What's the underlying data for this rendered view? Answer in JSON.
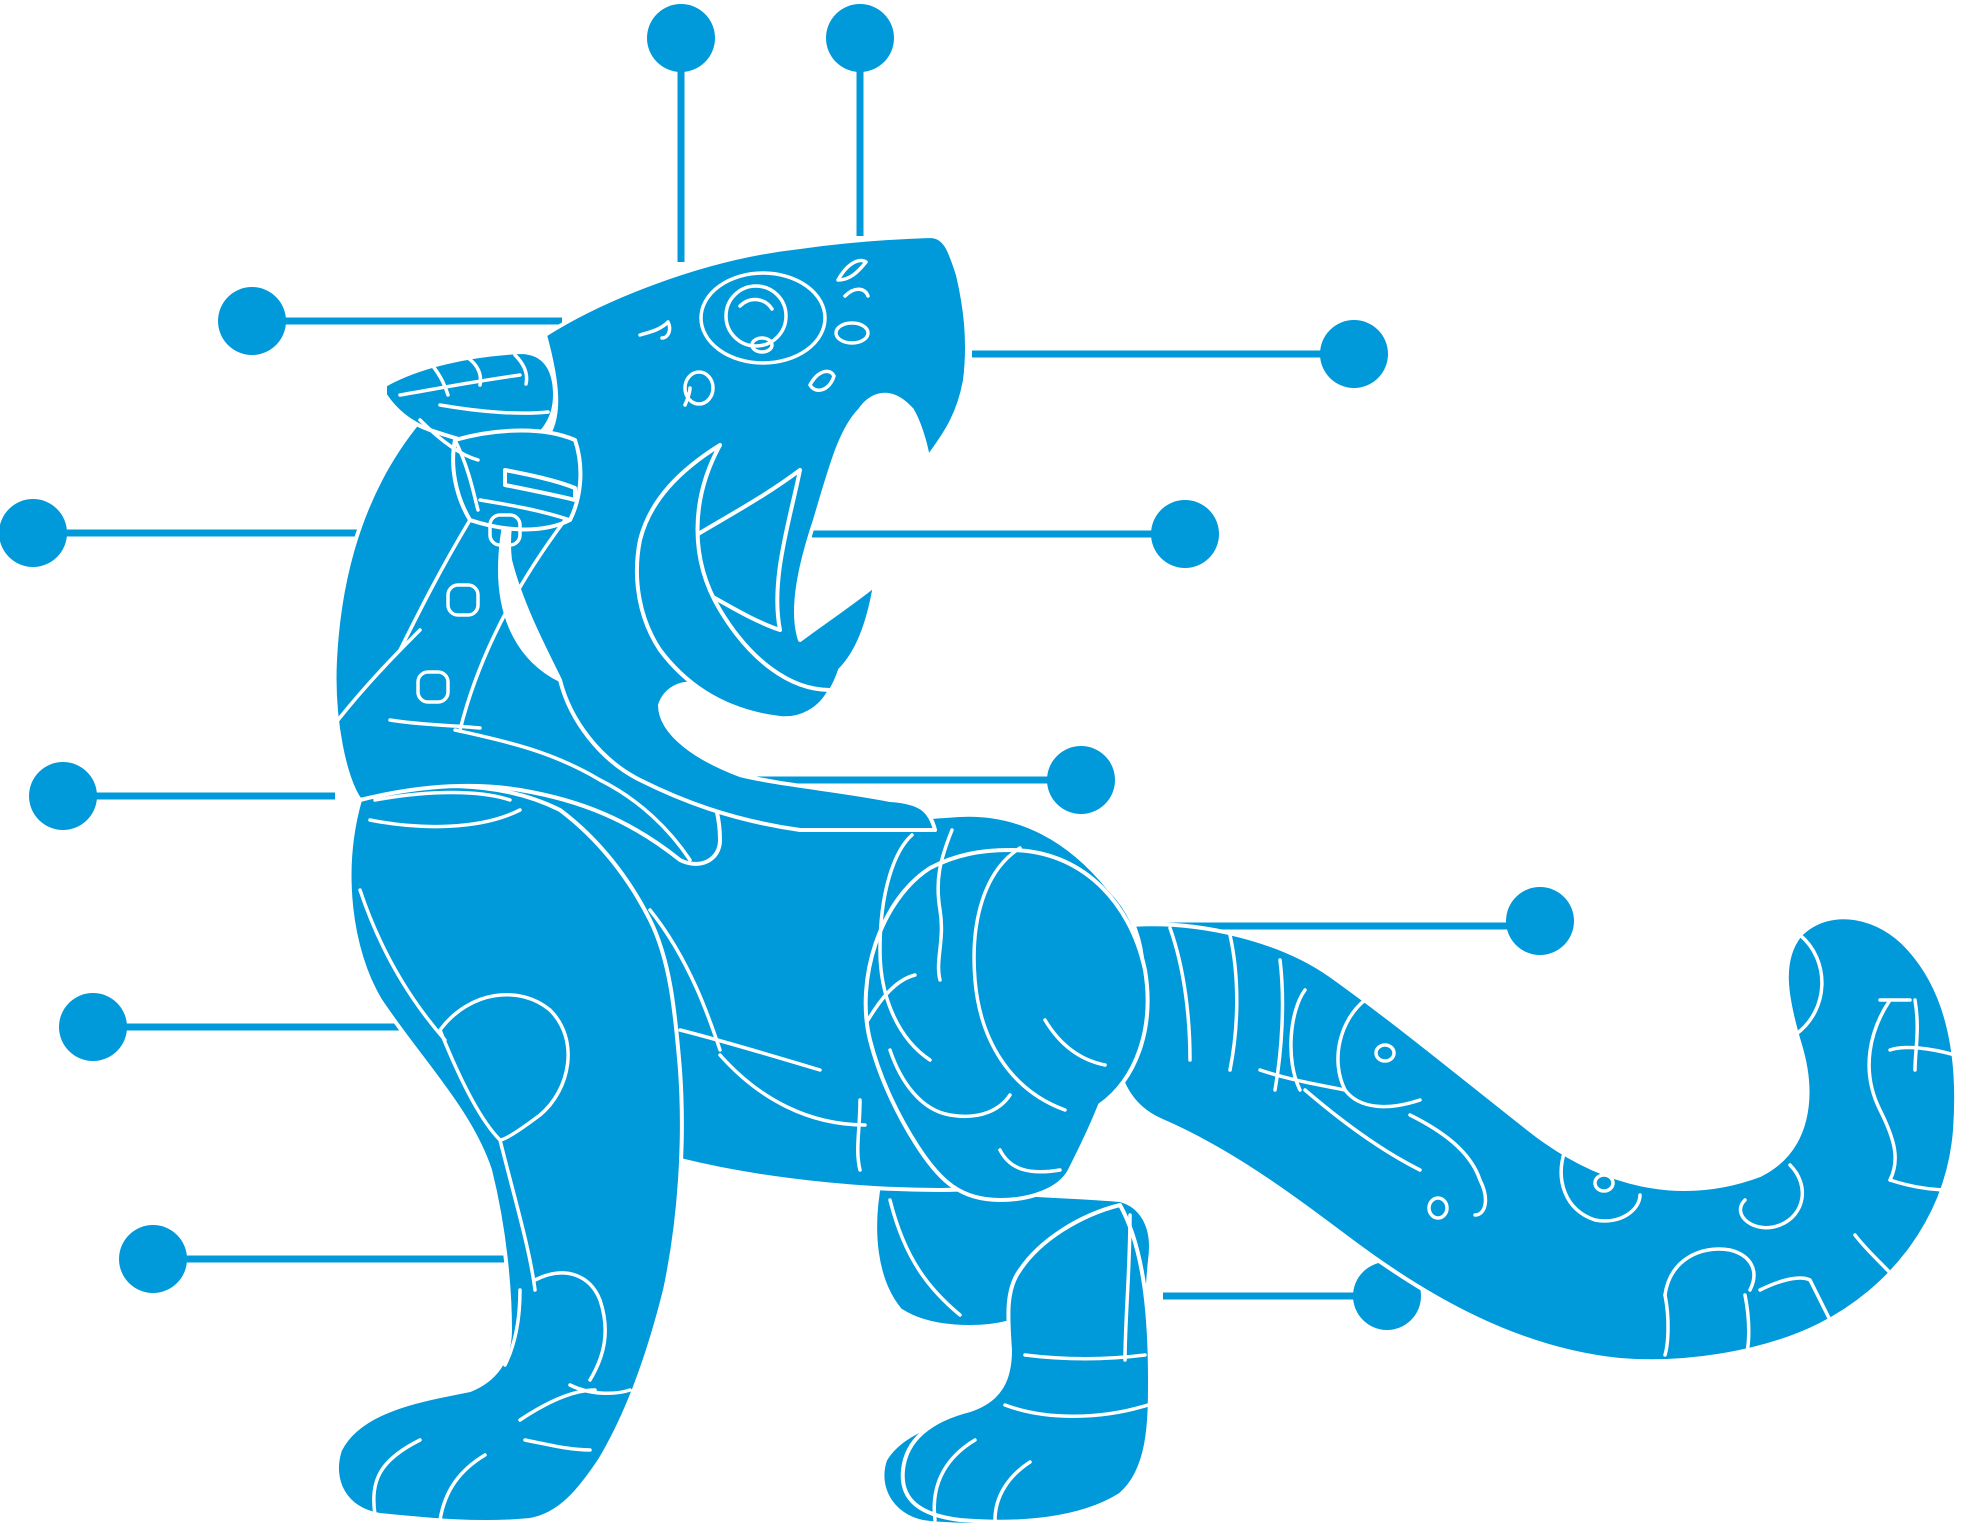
{
  "diagram": {
    "subject": "jaguar",
    "style": "flat silhouette with white outline segmentation",
    "colors": {
      "fill": "#0099D9",
      "outline": "#ffffff",
      "background": "#ffffff",
      "callout": "#0099D9"
    },
    "callouts": [
      {
        "id": "head-top-left",
        "side": "top",
        "label": ""
      },
      {
        "id": "head-top-right",
        "side": "top",
        "label": ""
      },
      {
        "id": "ear",
        "side": "left",
        "label": ""
      },
      {
        "id": "upper-jaw",
        "side": "right",
        "label": ""
      },
      {
        "id": "neck",
        "side": "left",
        "label": ""
      },
      {
        "id": "tongue",
        "side": "right",
        "label": ""
      },
      {
        "id": "chest",
        "side": "left",
        "label": ""
      },
      {
        "id": "lower-jaw",
        "side": "right",
        "label": ""
      },
      {
        "id": "shoulder",
        "side": "left",
        "label": ""
      },
      {
        "id": "tail-base",
        "side": "right",
        "label": ""
      },
      {
        "id": "front-leg",
        "side": "left",
        "label": ""
      },
      {
        "id": "hind-leg",
        "side": "right",
        "label": ""
      }
    ]
  }
}
